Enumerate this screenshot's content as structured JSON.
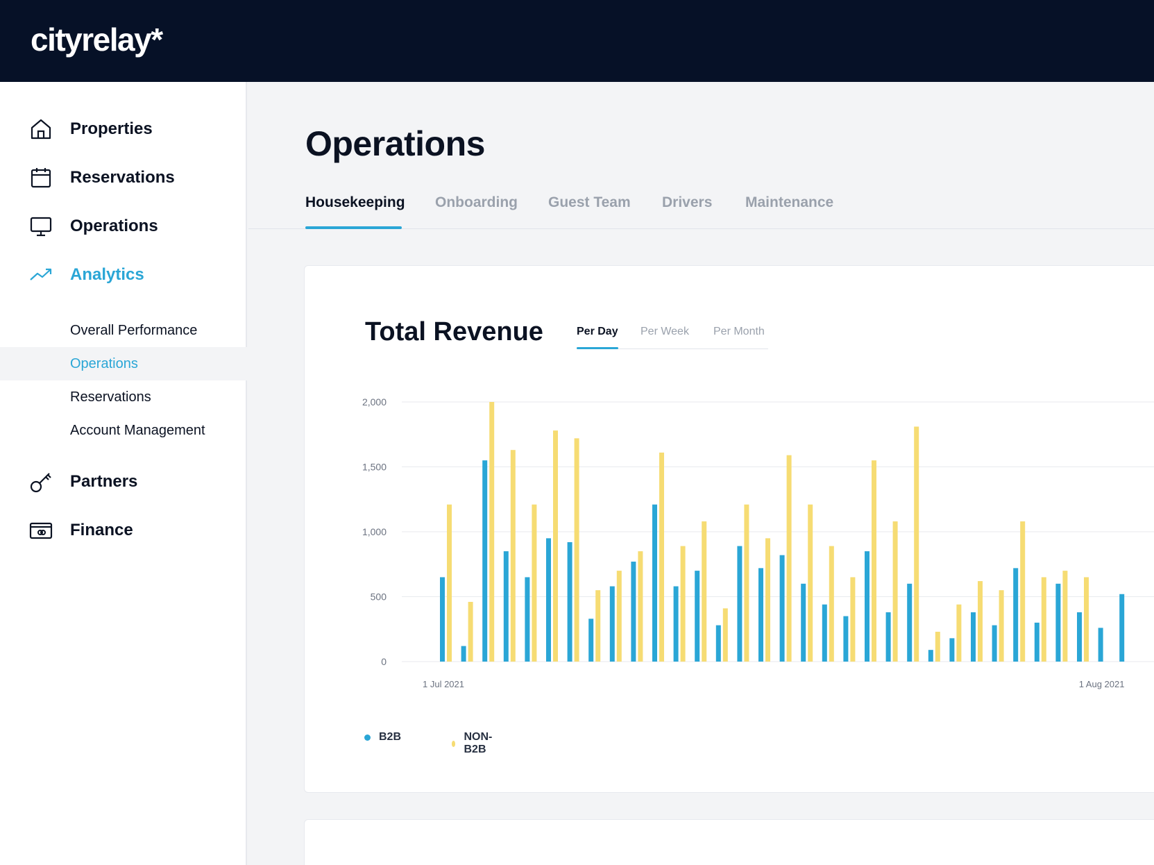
{
  "brand": {
    "logo": "cityrelay*"
  },
  "sidebar": {
    "items": [
      {
        "label": "Properties",
        "icon": "home-icon"
      },
      {
        "label": "Reservations",
        "icon": "calendar-icon"
      },
      {
        "label": "Operations",
        "icon": "monitor-icon"
      },
      {
        "label": "Analytics",
        "icon": "trend-up-icon",
        "active": true
      },
      {
        "label": "Partners",
        "icon": "key-icon"
      },
      {
        "label": "Finance",
        "icon": "wallet-icon"
      }
    ],
    "analytics_sub": [
      {
        "label": "Overall Performance"
      },
      {
        "label": "Operations",
        "active": true
      },
      {
        "label": "Reservations"
      },
      {
        "label": "Account Management"
      }
    ]
  },
  "main": {
    "title": "Operations",
    "tabs": [
      {
        "label": "Housekeeping",
        "active": true
      },
      {
        "label": "Onboarding"
      },
      {
        "label": "Guest Team"
      },
      {
        "label": "Drivers"
      },
      {
        "label": "Maintenance"
      }
    ]
  },
  "revenue_card": {
    "title": "Total Revenue",
    "period_tabs": [
      {
        "label": "Per Day",
        "active": true
      },
      {
        "label": "Per Week"
      },
      {
        "label": "Per Month"
      }
    ]
  },
  "colors": {
    "accent": "#2aa6d6",
    "b2b": "#2aa6d6",
    "non_b2b": "#f6dc73",
    "topbar": "#061127"
  },
  "chart_data": {
    "type": "bar",
    "title": "Total Revenue",
    "xlabel": "",
    "ylabel": "",
    "ylim": [
      0,
      2000
    ],
    "yticks": [
      0,
      500,
      1000,
      1500,
      2000
    ],
    "ytick_labels": [
      "0",
      "500",
      "1,000",
      "1,500",
      "2,000"
    ],
    "x_tick_labels": [
      {
        "label": "1 Jul 2021",
        "index": 0
      },
      {
        "label": "1 Aug 2021",
        "index": 31
      }
    ],
    "categories": [
      "1 Jul",
      "2 Jul",
      "3 Jul",
      "4 Jul",
      "5 Jul",
      "6 Jul",
      "7 Jul",
      "8 Jul",
      "9 Jul",
      "10 Jul",
      "11 Jul",
      "12 Jul",
      "13 Jul",
      "14 Jul",
      "15 Jul",
      "16 Jul",
      "17 Jul",
      "18 Jul",
      "19 Jul",
      "20 Jul",
      "21 Jul",
      "22 Jul",
      "23 Jul",
      "24 Jul",
      "25 Jul",
      "26 Jul",
      "27 Jul",
      "28 Jul",
      "29 Jul",
      "30 Jul",
      "31 Jul",
      "1 Aug",
      "2 Aug"
    ],
    "series": [
      {
        "name": "B2B",
        "values": [
          650,
          120,
          1550,
          850,
          650,
          950,
          920,
          330,
          580,
          770,
          1210,
          580,
          700,
          280,
          890,
          720,
          820,
          600,
          440,
          350,
          850,
          380,
          600,
          90,
          180,
          380,
          280,
          720,
          300,
          600,
          380,
          260,
          520
        ]
      },
      {
        "name": "NON-B2B",
        "values": [
          1210,
          460,
          2000,
          1630,
          1210,
          1780,
          1720,
          550,
          700,
          850,
          1610,
          890,
          1080,
          410,
          1210,
          950,
          1590,
          1210,
          890,
          650,
          1550,
          1080,
          1810,
          230,
          440,
          620,
          550,
          1080,
          650,
          700,
          650,
          0,
          0
        ]
      }
    ],
    "legend": "bottom-left"
  }
}
